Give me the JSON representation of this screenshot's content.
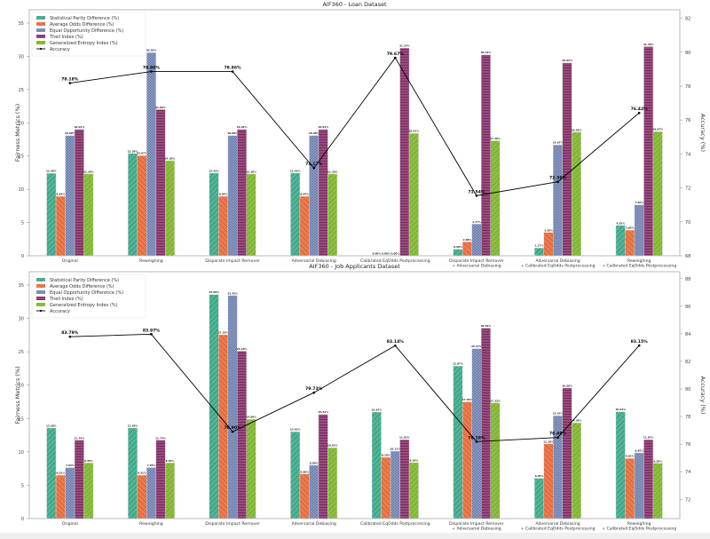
{
  "metric_names": [
    "Statistical Parity Difference (%)",
    "Average Odds Difference (%)",
    "Equal Opportunity Difference (%)",
    "Theil Index (%)",
    "Generalized Entropy Index (%)"
  ],
  "accuracy_label": "Accuracy",
  "colors": {
    "spd": "#4fb597",
    "aod": "#ee7a4c",
    "eod": "#6477a6",
    "theil": "#9a4a7e",
    "gei": "#8cbf3f",
    "line": "#000000"
  },
  "chart_data": [
    {
      "type": "bar",
      "title": "AIF360 - Loan Dataset",
      "xlabel": "",
      "ylabel": "Fairness Metrics (%)",
      "y2label": "Accuracy (%)",
      "ylim": [
        0,
        37
      ],
      "yticks": [
        0,
        5,
        10,
        15,
        20,
        25,
        30,
        35
      ],
      "y2lim": [
        68,
        82.5
      ],
      "y2ticks": [
        68,
        70,
        72,
        74,
        76,
        78,
        80,
        82
      ],
      "legend": "top-left",
      "grid": false,
      "categories": [
        "Original",
        "Reweighing",
        "Disparate Impact Remover",
        "Adversarial Debiasing",
        "Calibrated EqOdds Postprocessing",
        "Disparate Impact Remover\n+ Adversarial Debiasing",
        "Adversarial Debiasing\n+ Calibrated EqOdds Postprocessing",
        "Reweighing\n+ Calibrated EqOdds Postprocessing"
      ],
      "series": [
        {
          "name": "Statistical Parity Difference (%)",
          "values": [
            12.4,
            15.39,
            12.43,
            12.43,
            0.0,
            0.98,
            1.17,
            4.55
          ]
        },
        {
          "name": "Average Odds Difference (%)",
          "values": [
            8.94,
            15.07,
            8.94,
            8.94,
            0.0,
            2.08,
            3.5,
            3.85
          ]
        },
        {
          "name": "Equal Opportunity Difference (%)",
          "values": [
            18.08,
            30.56,
            18.08,
            18.08,
            0.0,
            4.77,
            16.67,
            7.66
          ]
        },
        {
          "name": "Theil Index (%)",
          "values": [
            19.01,
            21.99,
            19.01,
            19.01,
            31.24,
            30.23,
            29.02,
            31.46
          ]
        },
        {
          "name": "Generalized Entropy Index (%)",
          "values": [
            12.3,
            14.3,
            12.3,
            12.3,
            18.41,
            17.3,
            18.58,
            18.67
          ]
        }
      ],
      "accuracy": [
        78.18,
        78.86,
        78.86,
        73.17,
        79.67,
        71.54,
        72.36,
        76.42
      ]
    },
    {
      "type": "bar",
      "title": "AIF360 - Job Applicants Dataset",
      "xlabel": "",
      "ylabel": "Fairness Metrics (%)",
      "y2label": "Accuracy (%)",
      "ylim": [
        0,
        37
      ],
      "yticks": [
        0,
        5,
        10,
        15,
        20,
        25,
        30,
        35
      ],
      "y2lim": [
        70.6,
        88.5
      ],
      "y2ticks": [
        72,
        74,
        76,
        78,
        80,
        82,
        84,
        86,
        88
      ],
      "legend": "top-left",
      "grid": false,
      "categories": [
        "Original",
        "Reweighing",
        "Disparate Impact Remover",
        "Adversarial Debiasing",
        "Calibrated EqOdds Postprocessing",
        "Disparate Impact Remover\n+ Adversarial Debiasing",
        "Adversarial Debiasing\n+ Calibrated EqOdds Postprocessing",
        "Reweighing\n+ Calibrated EqOdds Postprocessing"
      ],
      "series": [
        {
          "name": "Statistical Parity Difference (%)",
          "values": [
            13.58,
            13.58,
            33.58,
            13.02,
            15.97,
            22.87,
            6.04,
            16.01
          ]
        },
        {
          "name": "Average Odds Difference (%)",
          "values": [
            6.51,
            6.51,
            27.55,
            6.68,
            9.18,
            17.49,
            11.2,
            9.02
          ]
        },
        {
          "name": "Equal Opportunity Difference (%)",
          "values": [
            7.64,
            7.65,
            33.43,
            8.0,
            10.11,
            25.47,
            15.42,
            9.85
          ]
        },
        {
          "name": "Theil Index (%)",
          "values": [
            11.74,
            11.74,
            25.1,
            15.61,
            11.83,
            28.54,
            19.58,
            11.83
          ]
        },
        {
          "name": "Generalized Entropy Index (%)",
          "values": [
            8.35,
            8.35,
            14.89,
            10.62,
            8.39,
            17.33,
            14.36,
            8.28
          ]
        }
      ],
      "accuracy": [
        83.79,
        83.97,
        76.9,
        79.73,
        83.14,
        76.18,
        76.48,
        83.15
      ]
    }
  ]
}
